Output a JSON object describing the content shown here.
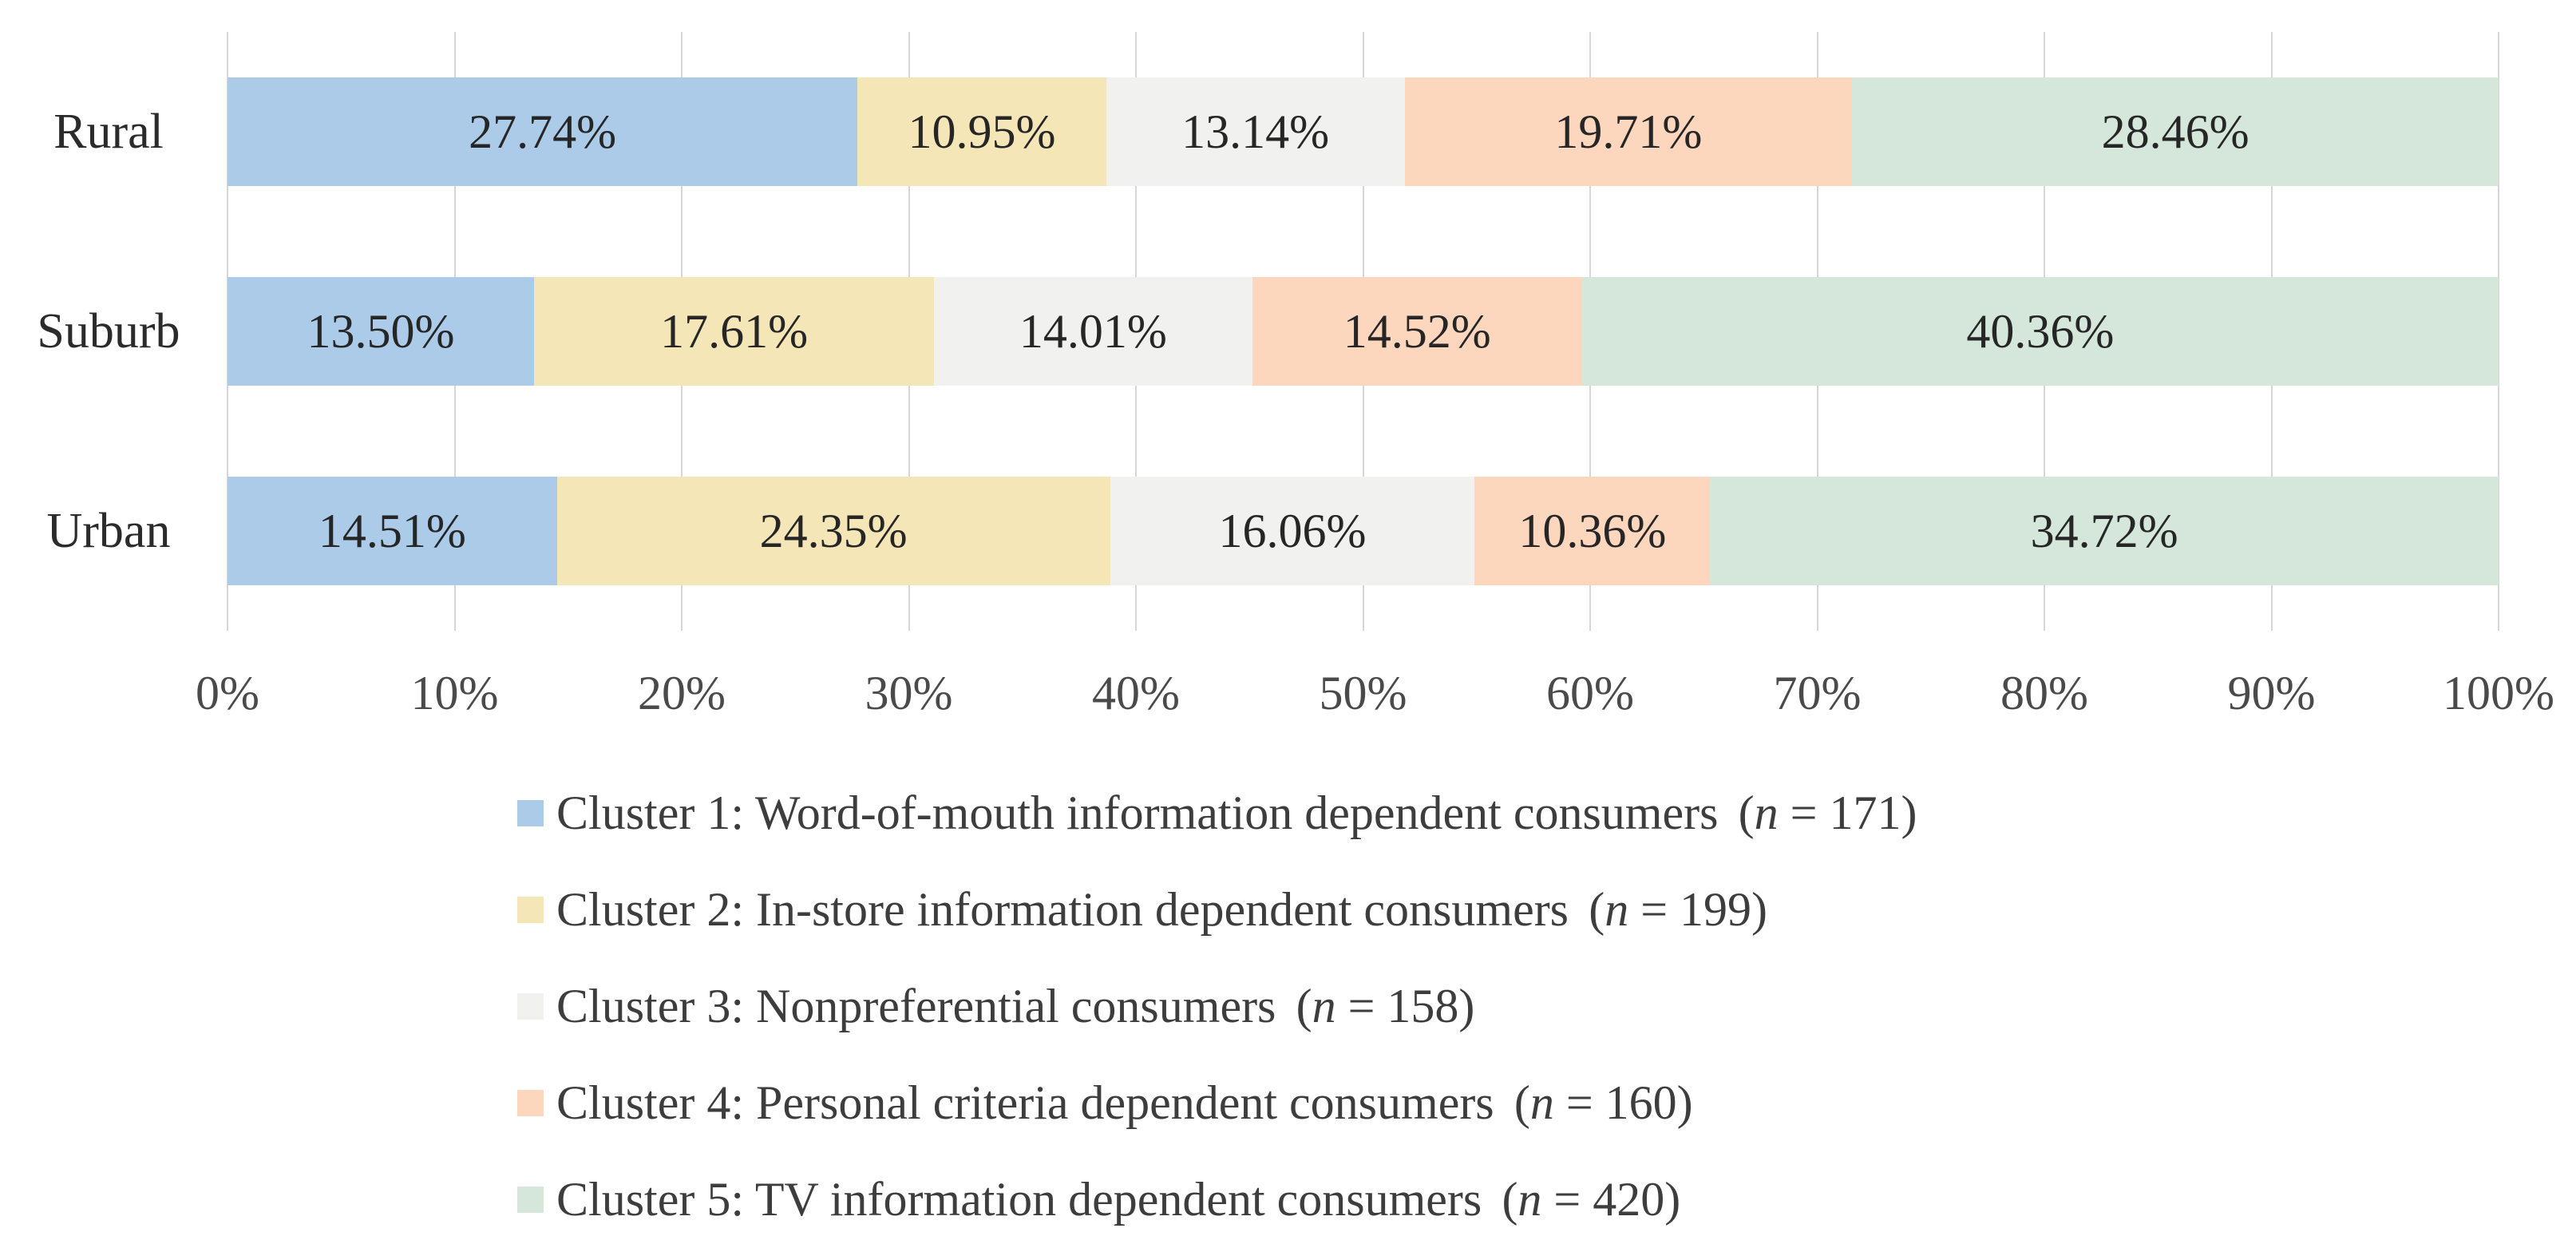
{
  "chart_data": {
    "type": "bar",
    "variant": "100-percent-stacked-horizontal",
    "title": "",
    "xlabel": "",
    "ylabel": "",
    "xlim": [
      0,
      100
    ],
    "grid": "vertical",
    "legend_position": "bottom-left",
    "categories": [
      "Rural",
      "Suburb",
      "Urban"
    ],
    "x_ticks": [
      "0%",
      "10%",
      "20%",
      "30%",
      "40%",
      "50%",
      "60%",
      "70%",
      "80%",
      "90%",
      "100%"
    ],
    "series": [
      {
        "name": "Cluster 1: Word-of-mouth information dependent consumers",
        "n": 171,
        "color": "#ACCBE9",
        "values": [
          27.74,
          13.5,
          14.51
        ]
      },
      {
        "name": "Cluster 2: In-store information dependent consumers",
        "n": 199,
        "color": "#F5E6B8",
        "values": [
          10.95,
          17.61,
          24.35
        ]
      },
      {
        "name": "Cluster 3: Nonpreferential consumers",
        "n": 158,
        "color": "#F1F1EF",
        "values": [
          13.14,
          14.01,
          16.06
        ]
      },
      {
        "name": "Cluster 4: Personal criteria dependent consumers",
        "n": 160,
        "color": "#FCD6BD",
        "values": [
          19.71,
          14.52,
          10.36
        ]
      },
      {
        "name": "Cluster 5: TV information dependent consumers",
        "n": 420,
        "color": "#D5E7DB",
        "values": [
          28.46,
          40.36,
          34.72
        ]
      }
    ],
    "data_labels": [
      [
        "27.74%",
        "10.95%",
        "13.14%",
        "19.71%",
        "28.46%"
      ],
      [
        "13.50%",
        "17.61%",
        "14.01%",
        "14.52%",
        "40.36%"
      ],
      [
        "14.51%",
        "24.35%",
        "16.06%",
        "10.36%",
        "34.72%"
      ]
    ],
    "legend": [
      {
        "label": "Cluster 1: Word-of-mouth information dependent consumers",
        "n_prefix": "(",
        "n_symbol": "n",
        "n_suffix": " = 171)"
      },
      {
        "label": "Cluster 2: In-store information dependent consumers",
        "n_prefix": "(",
        "n_symbol": "n",
        "n_suffix": " = 199)"
      },
      {
        "label": "Cluster 3: Nonpreferential consumers",
        "n_prefix": "(",
        "n_symbol": "n",
        "n_suffix": " = 158)"
      },
      {
        "label": "Cluster 4: Personal criteria dependent consumers",
        "n_prefix": "(",
        "n_symbol": "n",
        "n_suffix": " = 160)"
      },
      {
        "label": "Cluster 5: TV information dependent consumers",
        "n_prefix": "(",
        "n_symbol": "n",
        "n_suffix": " = 420)"
      }
    ]
  },
  "colors": {
    "background": "#FFFFFF",
    "gridline": "#D6D6D6",
    "axis_text": "#4A4A4A",
    "category_text": "#2B2B2B",
    "data_label_text": "#262626",
    "legend_text": "#3D3D3D"
  }
}
